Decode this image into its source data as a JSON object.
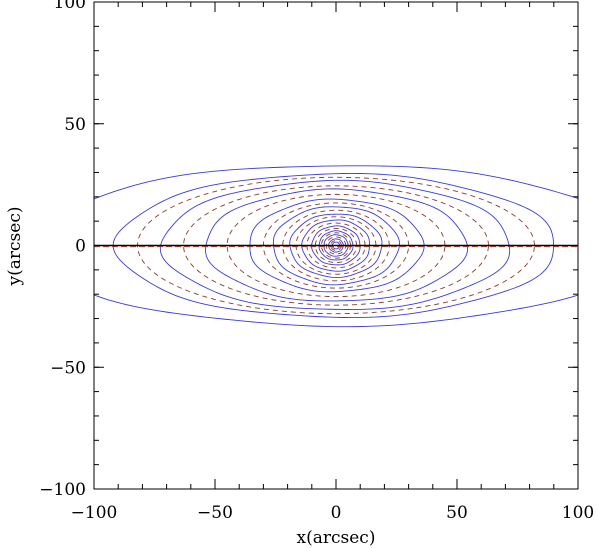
{
  "chart_data": {
    "type": "line",
    "title": "",
    "xlabel": "x(arcsec)",
    "ylabel": "y(arcsec)",
    "xlim": [
      -100,
      100
    ],
    "ylim": [
      -100,
      100
    ],
    "xticks": [
      -100,
      -50,
      0,
      50,
      100
    ],
    "yticks": [
      -100,
      -50,
      0,
      50,
      100
    ],
    "xtick_labels": [
      "−100",
      "−50",
      "0",
      "50",
      "100"
    ],
    "ytick_labels": [
      "−100",
      "−50",
      "0",
      "50",
      "100"
    ],
    "grid": false,
    "colors": {
      "observed": "#3b3bd6",
      "model": "#8b3a2a",
      "major_axis": "#000000",
      "axis_frame": "#000000"
    },
    "series": [
      {
        "style": "solid",
        "color": "observed",
        "contours": [
          {
            "a": 1.5,
            "b": 1.4
          },
          {
            "a": 3,
            "b": 2.7
          },
          {
            "a": 5,
            "b": 4.4
          },
          {
            "a": 7,
            "b": 6
          },
          {
            "a": 10,
            "b": 8
          },
          {
            "a": 14,
            "b": 10.5
          },
          {
            "a": 19,
            "b": 13
          },
          {
            "a": 26,
            "b": 16
          },
          {
            "a": 36,
            "b": 19
          },
          {
            "a": 54,
            "b": 23
          },
          {
            "a": 72,
            "b": 26.5
          },
          {
            "a": 91,
            "b": 29.5
          },
          {
            "a": 125,
            "b": 33,
            "cap": 35
          }
        ]
      },
      {
        "style": "dashed",
        "color": "model",
        "contours": [
          {
            "a": 2.2,
            "b": 2
          },
          {
            "a": 4,
            "b": 3.5
          },
          {
            "a": 6,
            "b": 5.2
          },
          {
            "a": 8.5,
            "b": 7
          },
          {
            "a": 12,
            "b": 9.2
          },
          {
            "a": 16.5,
            "b": 11.8
          },
          {
            "a": 22,
            "b": 14.5
          },
          {
            "a": 30,
            "b": 17.5
          },
          {
            "a": 45,
            "b": 21
          },
          {
            "a": 63,
            "b": 24.5
          },
          {
            "a": 82,
            "b": 28
          }
        ]
      }
    ],
    "major_axis": {
      "y": 0,
      "x_range": [
        -100,
        100
      ]
    }
  }
}
